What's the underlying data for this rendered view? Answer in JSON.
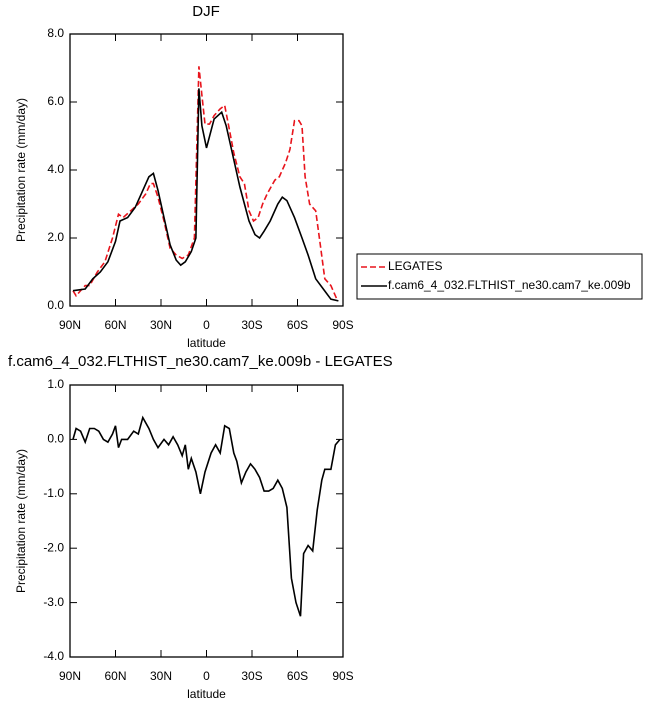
{
  "chart_data": [
    {
      "type": "line",
      "title": "DJF",
      "xlabel": "latitude",
      "ylabel": "Precipitation rate (mm/day)",
      "xlim": [
        90,
        -90
      ],
      "ylim": [
        0,
        8
      ],
      "xticks": [
        {
          "value": 90,
          "label": "90N"
        },
        {
          "value": 60,
          "label": "60N"
        },
        {
          "value": 30,
          "label": "30N"
        },
        0,
        {
          "value": -30,
          "label": "30S"
        },
        {
          "value": -60,
          "label": "60S"
        },
        {
          "value": -90,
          "label": "90S"
        }
      ],
      "yticks": [
        {
          "value": 0,
          "label": "0.0"
        },
        {
          "value": 2,
          "label": "2.0"
        },
        {
          "value": 4,
          "label": "4.0"
        },
        {
          "value": 6,
          "label": "6.0"
        },
        {
          "value": 8,
          "label": "8.0"
        }
      ],
      "legend": "right",
      "series": [
        {
          "name": "LEGATES",
          "color": "#e8141c",
          "linestyle": "dashed",
          "x": [
            88,
            86,
            82,
            80,
            77,
            72,
            67,
            62,
            58,
            55,
            50,
            45,
            40,
            37,
            35,
            32,
            28,
            24,
            20,
            16,
            12,
            8,
            5,
            3,
            1,
            -2,
            -5,
            -9,
            -12,
            -15,
            -18,
            -22,
            -25,
            -28,
            -31,
            -34,
            -37,
            -40,
            -45,
            -48,
            -52,
            -55,
            -58,
            -61,
            -63,
            -65,
            -68,
            -72,
            -75,
            -78,
            -82,
            -86
          ],
          "values": [
            0.45,
            0.3,
            0.5,
            0.6,
            0.6,
            1.0,
            1.3,
            2.0,
            2.7,
            2.6,
            2.8,
            3.0,
            3.3,
            3.6,
            3.6,
            3.2,
            2.5,
            1.7,
            1.5,
            1.4,
            1.5,
            2.0,
            7.05,
            6.2,
            5.35,
            5.35,
            5.6,
            5.8,
            5.9,
            5.2,
            4.5,
            3.8,
            3.6,
            2.8,
            2.5,
            2.6,
            3.0,
            3.3,
            3.7,
            3.8,
            4.2,
            4.6,
            5.45,
            5.45,
            5.3,
            3.8,
            3.0,
            2.8,
            1.8,
            0.8,
            0.6,
            0.2
          ]
        },
        {
          "name": "f.cam6_4_032.FLTHIST_ne30.cam7_ke.009b",
          "color": "#000000",
          "linestyle": "solid",
          "x": [
            88,
            80,
            75,
            70,
            65,
            60,
            57,
            52,
            47,
            43,
            38,
            35,
            32,
            28,
            24,
            20,
            17,
            14,
            10,
            7,
            5,
            3,
            0,
            -5,
            -10,
            -13,
            -17,
            -22,
            -28,
            -32,
            -35,
            -38,
            -42,
            -47,
            -50,
            -53,
            -58,
            -63,
            -67,
            -72,
            -77,
            -82,
            -87
          ],
          "values": [
            0.45,
            0.5,
            0.8,
            1.0,
            1.3,
            1.9,
            2.5,
            2.6,
            2.9,
            3.3,
            3.8,
            3.9,
            3.4,
            2.6,
            1.8,
            1.35,
            1.2,
            1.3,
            1.6,
            2.0,
            6.4,
            5.3,
            4.65,
            5.5,
            5.7,
            5.3,
            4.5,
            3.5,
            2.5,
            2.1,
            2.0,
            2.2,
            2.5,
            3.0,
            3.2,
            3.1,
            2.6,
            2.0,
            1.5,
            0.8,
            0.5,
            0.2,
            0.15
          ]
        }
      ]
    },
    {
      "type": "line",
      "title": "f.cam6_4_032.FLTHIST_ne30.cam7_ke.009b - LEGATES",
      "xlabel": "latitude",
      "ylabel": "Precipitation rate (mm/day)",
      "xlim": [
        90,
        -90
      ],
      "ylim": [
        -4,
        1
      ],
      "xticks": [
        {
          "value": 90,
          "label": "90N"
        },
        {
          "value": 60,
          "label": "60N"
        },
        {
          "value": 30,
          "label": "30N"
        },
        0,
        {
          "value": -30,
          "label": "30S"
        },
        {
          "value": -60,
          "label": "60S"
        },
        {
          "value": -90,
          "label": "90S"
        }
      ],
      "yticks": [
        {
          "value": 1,
          "label": "1.0"
        },
        {
          "value": 0,
          "label": "0.0"
        },
        {
          "value": -1,
          "label": "-1.0"
        },
        {
          "value": -2,
          "label": "-2.0"
        },
        {
          "value": -3,
          "label": "-3.0"
        },
        {
          "value": -4,
          "label": "-4.0"
        }
      ],
      "series": [
        {
          "color": "#000000",
          "linestyle": "solid",
          "x": [
            88,
            86,
            83,
            80,
            77,
            74,
            71,
            68,
            65,
            62,
            60,
            58,
            56,
            52,
            48,
            45,
            42,
            38,
            35,
            32,
            28,
            25,
            22,
            19,
            16,
            14,
            12,
            10,
            7,
            4,
            1,
            -3,
            -6,
            -9,
            -12,
            -15,
            -18,
            -20,
            -23,
            -26,
            -29,
            -32,
            -35,
            -38,
            -41,
            -44,
            -47,
            -50,
            -53,
            -56,
            -59,
            -62,
            -64,
            -67,
            -70,
            -73,
            -76,
            -78,
            -82,
            -85,
            -88
          ],
          "values": [
            0.0,
            0.2,
            0.15,
            -0.05,
            0.2,
            0.2,
            0.15,
            0.0,
            -0.05,
            0.1,
            0.25,
            -0.15,
            0.0,
            0.0,
            0.15,
            0.1,
            0.4,
            0.2,
            0.0,
            -0.15,
            0.0,
            -0.1,
            0.05,
            -0.1,
            -0.3,
            -0.1,
            -0.55,
            -0.35,
            -0.6,
            -1.0,
            -0.6,
            -0.25,
            -0.1,
            -0.25,
            0.25,
            0.2,
            -0.25,
            -0.4,
            -0.8,
            -0.6,
            -0.45,
            -0.55,
            -0.7,
            -0.95,
            -0.95,
            -0.9,
            -0.75,
            -0.9,
            -1.25,
            -2.55,
            -3.0,
            -3.25,
            -2.1,
            -1.95,
            -2.05,
            -1.3,
            -0.75,
            -0.55,
            -0.55,
            -0.1,
            0.0
          ]
        }
      ]
    }
  ]
}
